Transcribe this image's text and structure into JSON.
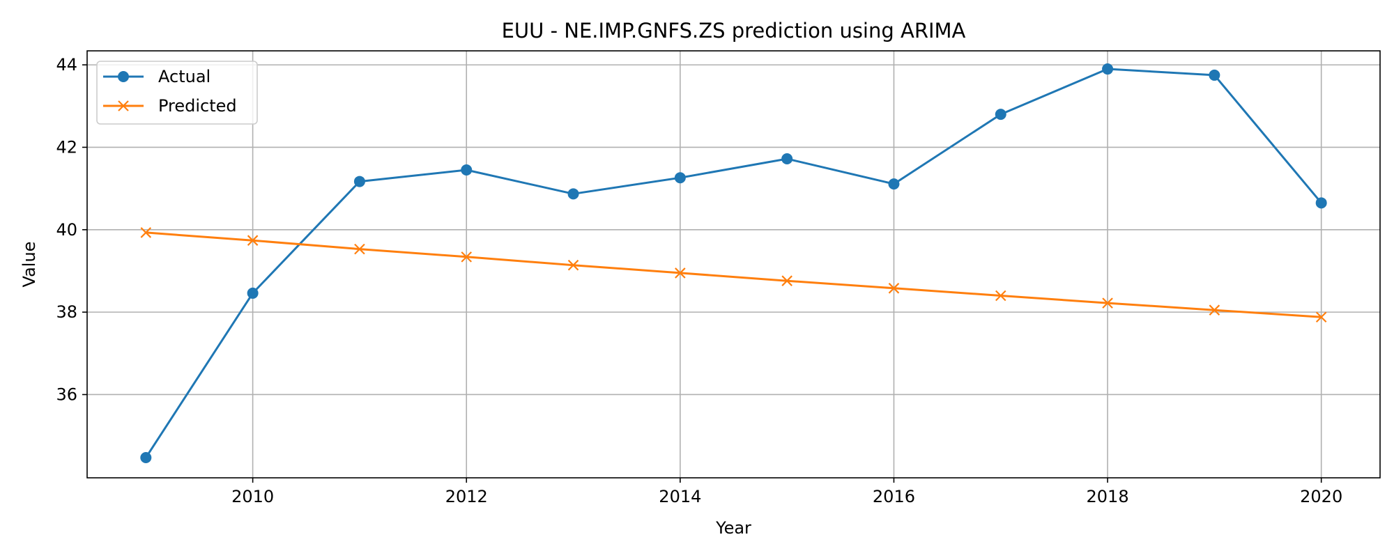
{
  "chart_data": {
    "type": "line",
    "title": "EUU - NE.IMP.GNFS.ZS prediction using ARIMA",
    "xlabel": "Year",
    "ylabel": "Value",
    "x": [
      2009,
      2010,
      2011,
      2012,
      2013,
      2014,
      2015,
      2016,
      2017,
      2018,
      2019,
      2020
    ],
    "xlim": [
      2008.45,
      2020.55
    ],
    "ylim": [
      33.98,
      44.34
    ],
    "xticks": [
      2010,
      2012,
      2014,
      2016,
      2018,
      2020
    ],
    "yticks": [
      36,
      38,
      40,
      42,
      44
    ],
    "grid": true,
    "legend_position": "upper-left",
    "series": [
      {
        "name": "Actual",
        "color": "#1f77b4",
        "marker": "circle",
        "values": [
          34.47,
          38.46,
          41.17,
          41.45,
          40.87,
          41.26,
          41.72,
          41.11,
          42.8,
          43.9,
          43.75,
          40.65
        ]
      },
      {
        "name": "Predicted",
        "color": "#ff7f0e",
        "marker": "x",
        "values": [
          39.93,
          39.74,
          39.53,
          39.34,
          39.14,
          38.95,
          38.76,
          38.58,
          38.4,
          38.22,
          38.05,
          37.88
        ]
      }
    ]
  }
}
